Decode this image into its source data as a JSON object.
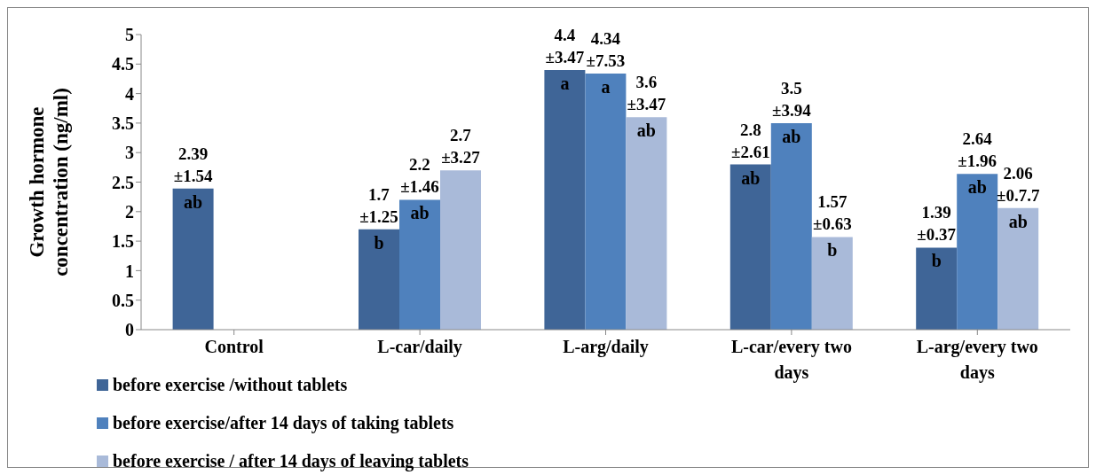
{
  "chart_data": {
    "type": "bar",
    "ylabel": "Growth hormone concentration (ng/ml)",
    "categories": [
      "Control",
      "L-car/daily",
      "L-arg/daily",
      "L-car/every two days",
      "L-arg/every two days"
    ],
    "series": [
      {
        "name": "before exercise /without tablets",
        "color": "#3f6597",
        "values": [
          2.39,
          1.7,
          4.4,
          2.8,
          1.39
        ],
        "value_labels": [
          "2.39\n±1.54\nab",
          "1.7\n±1.25\nb",
          "4.4\n±3.47\na",
          "2.8\n±2.61\nab",
          "1.39\n±0.37\nb"
        ]
      },
      {
        "name": "before exercise/after 14 days of taking tablets",
        "color": "#4f81bd",
        "values": [
          null,
          2.2,
          4.34,
          3.5,
          2.64
        ],
        "value_labels": [
          null,
          "2.2\n±1.46\nab",
          "4.34\n±7.53\na",
          "3.5\n±3.94\nab",
          "2.64\n±1.96\nab"
        ]
      },
      {
        "name": "before exercise / after 14 days of leaving tablets",
        "color": "#a9bad9",
        "values": [
          null,
          2.7,
          3.6,
          1.57,
          2.06
        ],
        "value_labels": [
          null,
          "2.7\n±3.27\n",
          "3.6\n±3.47\nab",
          "1.57\n±0.63\nb",
          "2.06\n±0.7.7\nab"
        ]
      }
    ],
    "ylim": [
      0,
      5
    ],
    "yticks": [
      0,
      0.5,
      1,
      1.5,
      2,
      2.5,
      3,
      3.5,
      4,
      4.5,
      5
    ],
    "grid": false,
    "legend": "bottom left"
  }
}
